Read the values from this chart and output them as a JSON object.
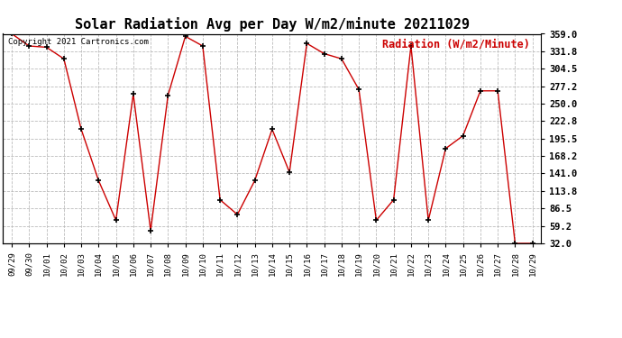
{
  "title": "Solar Radiation Avg per Day W/m2/minute 20211029",
  "copyright_text": "Copyright 2021 Cartronics.com",
  "ylabel": "Radiation (W/m2/Minute)",
  "dates": [
    "09/29",
    "09/30",
    "10/01",
    "10/02",
    "10/03",
    "10/04",
    "10/05",
    "10/06",
    "10/07",
    "10/08",
    "10/09",
    "10/10",
    "10/11",
    "10/12",
    "10/13",
    "10/14",
    "10/15",
    "10/16",
    "10/17",
    "10/18",
    "10/19",
    "10/20",
    "10/21",
    "10/22",
    "10/23",
    "10/24",
    "10/25",
    "10/26",
    "10/27",
    "10/28",
    "10/29"
  ],
  "values": [
    359.0,
    340.0,
    338.0,
    320.0,
    210.0,
    130.0,
    68.0,
    265.0,
    52.0,
    263.0,
    355.0,
    340.0,
    100.0,
    77.0,
    130.0,
    210.0,
    143.0,
    344.0,
    328.0,
    320.0,
    272.0,
    68.0,
    100.0,
    340.0,
    68.0,
    180.0,
    200.0,
    270.0,
    270.0,
    32.0,
    32.0
  ],
  "yticks": [
    32.0,
    59.2,
    86.5,
    113.8,
    141.0,
    168.2,
    195.5,
    222.8,
    250.0,
    277.2,
    304.5,
    331.8,
    359.0
  ],
  "line_color": "#cc0000",
  "marker_color": "#000000",
  "bg_color": "#ffffff",
  "grid_color": "#bbbbbb",
  "title_fontsize": 11,
  "ylabel_color": "#cc0000",
  "copyright_color": "#000000",
  "ymin": 32.0,
  "ymax": 359.0
}
